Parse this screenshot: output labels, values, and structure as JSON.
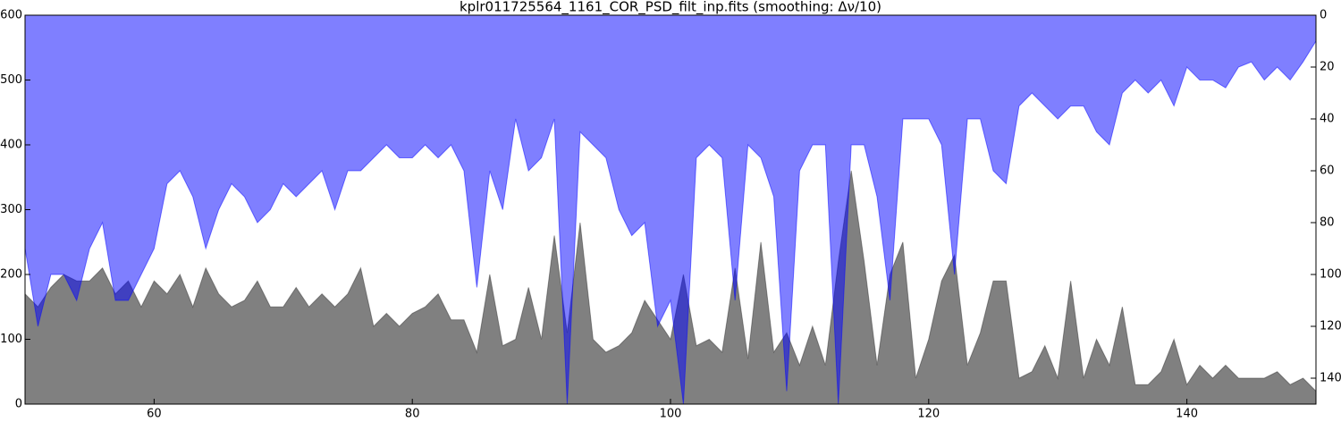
{
  "chart_data": {
    "type": "area",
    "title": "kplr011725564_1161_COR_PSD_filt_inp.fits (smoothing: Δν/10)",
    "x": [
      50,
      51,
      52,
      53,
      54,
      55,
      56,
      57,
      58,
      59,
      60,
      61,
      62,
      63,
      64,
      65,
      66,
      67,
      68,
      69,
      70,
      71,
      72,
      73,
      74,
      75,
      76,
      77,
      78,
      79,
      80,
      81,
      82,
      83,
      84,
      85,
      86,
      87,
      88,
      89,
      90,
      91,
      92,
      93,
      94,
      95,
      96,
      97,
      98,
      99,
      100,
      101,
      102,
      103,
      104,
      105,
      106,
      107,
      108,
      109,
      110,
      111,
      112,
      113,
      114,
      115,
      116,
      117,
      118,
      119,
      120,
      121,
      122,
      123,
      124,
      125,
      126,
      127,
      128,
      129,
      130,
      131,
      132,
      133,
      134,
      135,
      136,
      137,
      138,
      139,
      140,
      141,
      142,
      143,
      144,
      145,
      146,
      147,
      148,
      149,
      150
    ],
    "series": [
      {
        "color": "#808080",
        "values": [
          170,
          150,
          180,
          200,
          190,
          190,
          210,
          170,
          190,
          150,
          190,
          170,
          200,
          150,
          210,
          170,
          150,
          160,
          190,
          150,
          150,
          180,
          150,
          170,
          150,
          170,
          210,
          120,
          140,
          120,
          140,
          150,
          170,
          130,
          130,
          80,
          200,
          90,
          100,
          180,
          100,
          260,
          110,
          280,
          100,
          80,
          90,
          110,
          160,
          130,
          100,
          200,
          90,
          100,
          80,
          210,
          70,
          250,
          80,
          110,
          60,
          120,
          60,
          220,
          360,
          220,
          60,
          200,
          250,
          40,
          100,
          190,
          230,
          60,
          110,
          190,
          190,
          40,
          50,
          90,
          40,
          190,
          40,
          100,
          60,
          150,
          30,
          30,
          50,
          100,
          30,
          60,
          40,
          60,
          40,
          40,
          40,
          50,
          30,
          40,
          20
        ]
      },
      {
        "color": "#0000ff",
        "axis": "y2",
        "values": [
          90,
          120,
          100,
          100,
          110,
          90,
          80,
          110,
          110,
          100,
          90,
          65,
          60,
          70,
          90,
          75,
          65,
          70,
          80,
          75,
          65,
          70,
          65,
          60,
          75,
          60,
          60,
          55,
          50,
          55,
          55,
          50,
          55,
          50,
          60,
          105,
          60,
          75,
          40,
          60,
          55,
          40,
          150,
          45,
          50,
          55,
          75,
          85,
          80,
          120,
          110,
          150,
          55,
          50,
          55,
          110,
          50,
          55,
          70,
          145,
          60,
          50,
          50,
          150,
          50,
          50,
          70,
          110,
          40,
          40,
          40,
          50,
          100,
          40,
          40,
          60,
          65,
          35,
          30,
          35,
          40,
          35,
          35,
          45,
          50,
          30,
          25,
          30,
          25,
          35,
          20,
          25,
          25,
          28,
          20,
          18,
          25,
          20,
          25,
          18,
          10
        ]
      }
    ],
    "xlim": [
      50,
      150
    ],
    "xticks": [
      60,
      80,
      100,
      120,
      140
    ],
    "ylim": [
      0,
      600
    ],
    "yticks": [
      0,
      100,
      200,
      300,
      400,
      500,
      600
    ],
    "y2lim": [
      150,
      0
    ],
    "y2ticks": [
      0,
      20,
      40,
      60,
      80,
      100,
      120,
      140
    ]
  }
}
